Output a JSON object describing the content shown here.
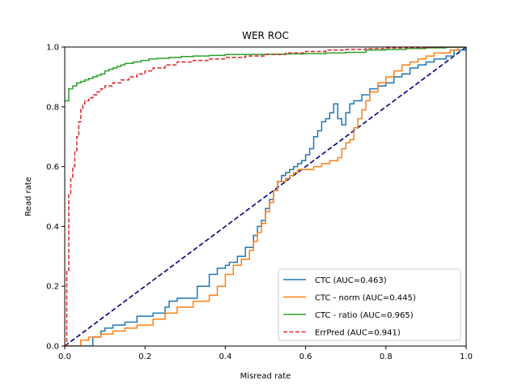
{
  "chart_data": {
    "type": "line",
    "title": "WER ROC",
    "xlabel": "Misread rate",
    "ylabel": "Read rate",
    "xlim": [
      0,
      1
    ],
    "ylim": [
      0,
      1
    ],
    "xticks": [
      "0.0",
      "0.2",
      "0.4",
      "0.6",
      "0.8",
      "1.0"
    ],
    "yticks": [
      "0.0",
      "0.2",
      "0.4",
      "0.6",
      "0.8",
      "1.0"
    ],
    "grid": false,
    "legend_position": "lower-right",
    "diagonal": {
      "x": [
        0,
        1
      ],
      "y": [
        0,
        1
      ],
      "color": "#000080",
      "style": "dashed"
    },
    "series": [
      {
        "name": "CTC (AUC=0.463)",
        "color": "#1f77b4",
        "style": "solid",
        "step": true,
        "x": [
          0.0,
          0.07,
          0.09,
          0.1,
          0.12,
          0.15,
          0.18,
          0.22,
          0.25,
          0.26,
          0.28,
          0.32,
          0.33,
          0.36,
          0.38,
          0.4,
          0.41,
          0.43,
          0.45,
          0.47,
          0.48,
          0.49,
          0.5,
          0.51,
          0.52,
          0.53,
          0.54,
          0.55,
          0.56,
          0.57,
          0.58,
          0.59,
          0.6,
          0.61,
          0.62,
          0.63,
          0.64,
          0.65,
          0.66,
          0.67,
          0.68,
          0.69,
          0.7,
          0.71,
          0.72,
          0.74,
          0.76,
          0.78,
          0.8,
          0.82,
          0.84,
          0.86,
          0.88,
          0.9,
          0.92,
          0.95,
          0.97,
          1.0
        ],
        "y": [
          0.0,
          0.03,
          0.05,
          0.06,
          0.07,
          0.08,
          0.1,
          0.11,
          0.13,
          0.15,
          0.16,
          0.16,
          0.2,
          0.24,
          0.26,
          0.27,
          0.28,
          0.3,
          0.33,
          0.37,
          0.4,
          0.42,
          0.46,
          0.49,
          0.52,
          0.55,
          0.57,
          0.58,
          0.59,
          0.6,
          0.61,
          0.62,
          0.64,
          0.66,
          0.7,
          0.72,
          0.75,
          0.76,
          0.78,
          0.81,
          0.76,
          0.74,
          0.78,
          0.81,
          0.82,
          0.84,
          0.86,
          0.87,
          0.88,
          0.9,
          0.91,
          0.93,
          0.94,
          0.95,
          0.96,
          0.97,
          0.99,
          1.0
        ]
      },
      {
        "name": "CTC - norm (AUC=0.445)",
        "color": "#ff7f0e",
        "style": "solid",
        "step": true,
        "x": [
          0.0,
          0.04,
          0.06,
          0.09,
          0.12,
          0.15,
          0.18,
          0.22,
          0.25,
          0.28,
          0.32,
          0.36,
          0.38,
          0.4,
          0.42,
          0.44,
          0.46,
          0.47,
          0.48,
          0.49,
          0.5,
          0.51,
          0.52,
          0.53,
          0.55,
          0.56,
          0.57,
          0.58,
          0.6,
          0.62,
          0.64,
          0.66,
          0.68,
          0.69,
          0.7,
          0.71,
          0.72,
          0.73,
          0.74,
          0.75,
          0.76,
          0.78,
          0.8,
          0.82,
          0.84,
          0.86,
          0.88,
          0.9,
          0.92,
          0.94,
          0.96,
          0.98,
          1.0
        ],
        "y": [
          0.0,
          0.02,
          0.03,
          0.04,
          0.05,
          0.06,
          0.07,
          0.09,
          0.11,
          0.13,
          0.15,
          0.17,
          0.2,
          0.24,
          0.27,
          0.29,
          0.32,
          0.35,
          0.38,
          0.41,
          0.45,
          0.48,
          0.52,
          0.55,
          0.56,
          0.57,
          0.58,
          0.59,
          0.59,
          0.6,
          0.61,
          0.62,
          0.63,
          0.66,
          0.68,
          0.69,
          0.73,
          0.76,
          0.79,
          0.82,
          0.85,
          0.88,
          0.9,
          0.92,
          0.94,
          0.95,
          0.96,
          0.97,
          0.98,
          0.98,
          0.99,
          1.0,
          1.0
        ]
      },
      {
        "name": "CTC - ratio (AUC=0.965)",
        "color": "#2ca02c",
        "style": "solid",
        "step": true,
        "x": [
          0.0,
          0.01,
          0.02,
          0.03,
          0.04,
          0.05,
          0.06,
          0.07,
          0.08,
          0.09,
          0.1,
          0.11,
          0.12,
          0.13,
          0.14,
          0.15,
          0.17,
          0.19,
          0.21,
          0.23,
          0.26,
          0.29,
          0.32,
          0.36,
          0.4,
          0.45,
          0.5,
          0.55,
          0.6,
          0.65,
          0.7,
          0.75,
          0.8,
          0.85,
          0.9,
          0.95,
          1.0
        ],
        "y": [
          0.82,
          0.86,
          0.87,
          0.88,
          0.885,
          0.89,
          0.895,
          0.9,
          0.905,
          0.91,
          0.92,
          0.925,
          0.93,
          0.935,
          0.94,
          0.945,
          0.95,
          0.955,
          0.96,
          0.962,
          0.965,
          0.968,
          0.97,
          0.972,
          0.975,
          0.975,
          0.976,
          0.977,
          0.978,
          0.98,
          0.982,
          0.99,
          0.992,
          0.995,
          0.997,
          0.999,
          1.0
        ]
      },
      {
        "name": "ErrPred (AUC=0.941)",
        "color": "#d62728",
        "style": "dashed",
        "step": true,
        "x": [
          0.0,
          0.005,
          0.01,
          0.015,
          0.02,
          0.025,
          0.03,
          0.035,
          0.04,
          0.045,
          0.05,
          0.06,
          0.07,
          0.08,
          0.09,
          0.1,
          0.12,
          0.14,
          0.16,
          0.18,
          0.2,
          0.22,
          0.25,
          0.28,
          0.32,
          0.36,
          0.4,
          0.45,
          0.5,
          0.55,
          0.6,
          0.65,
          0.7,
          0.75,
          0.8,
          0.85,
          0.9,
          0.95,
          1.0
        ],
        "y": [
          0.0,
          0.25,
          0.51,
          0.56,
          0.6,
          0.65,
          0.7,
          0.75,
          0.79,
          0.81,
          0.82,
          0.83,
          0.84,
          0.85,
          0.86,
          0.87,
          0.88,
          0.89,
          0.9,
          0.91,
          0.92,
          0.93,
          0.94,
          0.95,
          0.955,
          0.96,
          0.965,
          0.97,
          0.975,
          0.98,
          0.985,
          0.99,
          0.992,
          0.995,
          0.997,
          0.998,
          0.999,
          1.0,
          1.0
        ]
      }
    ]
  }
}
